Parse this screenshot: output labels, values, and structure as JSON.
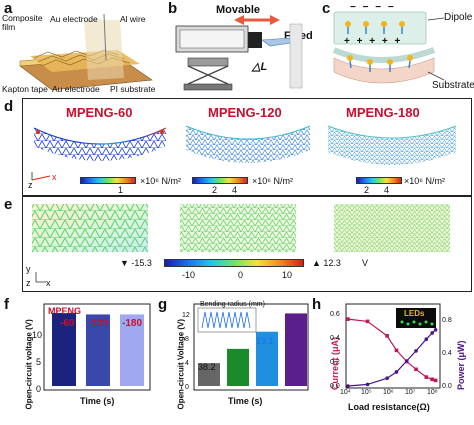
{
  "panels": {
    "a": {
      "label": "a",
      "texts": {
        "composite": "Composite\nfilm",
        "au_top": "Au electrode",
        "al": "Al wire",
        "kapton": "Kapton tape",
        "au_bottom": "Au electrode",
        "pi": "PI substrate"
      }
    },
    "b": {
      "label": "b",
      "movable": "Movable",
      "fixed": "Fixed",
      "delta": "△L"
    },
    "c": {
      "label": "c",
      "dipole": "Dipole",
      "substrate": "Substrate",
      "minus": "− − − −",
      "plus": "+ + + + +"
    },
    "d": {
      "label": "d",
      "titles": [
        "MPENG-60",
        "MPENG-120",
        "MPENG-180"
      ],
      "cbar1": {
        "ticks": [
          "1"
        ],
        "unit": "×10⁶ N/m²"
      },
      "cbar2": {
        "ticks": [
          "2",
          "4"
        ],
        "unit": "×10⁶ N/m²"
      },
      "cbar3": {
        "ticks": [
          "2",
          "4"
        ],
        "unit": "×10⁶ N/m²"
      },
      "axes": {
        "z": "z",
        "x": "x"
      }
    },
    "e": {
      "label": "e",
      "axes": {
        "y": "y",
        "z": "z",
        "x": "x"
      },
      "min_marker": "▼ -15.3",
      "max_marker": "▲ 12.3",
      "unit": "V",
      "ticks": [
        "-10",
        "0",
        "10"
      ]
    },
    "f": {
      "label": "f",
      "ylabel": "Open-circuit voltage (V)",
      "xlabel": "Time (s)",
      "title": "MPENG",
      "series_labels": [
        "-60",
        "-120",
        "-180"
      ],
      "yticks": [
        "0",
        "5",
        "10"
      ]
    },
    "g": {
      "label": "g",
      "ylabel": "Open-circuit Voltage (V)",
      "xlabel": "Time (s)",
      "inset_title": "Bending radius (mm)",
      "values": [
        "38.2",
        "25.5",
        "19.1",
        "12.7"
      ],
      "yticks": [
        "0",
        "2",
        "4",
        "6",
        "8",
        "10",
        "12",
        "14"
      ]
    },
    "h": {
      "label": "h",
      "ylabel_left": "Current (μA)",
      "ylabel_right": "Power (μW)",
      "xlabel": "Load resistance(Ω)",
      "leds": "LEDs",
      "yticks_left": [
        "0.0",
        "0.2",
        "0.4",
        "0.6"
      ],
      "yticks_right": [
        "0.0",
        "0.2",
        "0.4",
        "0.6",
        "0.8",
        "1.0"
      ],
      "xticks": [
        "10⁴",
        "10⁵",
        "10⁶",
        "10⁷",
        "10⁸"
      ]
    }
  },
  "chart_data": [
    {
      "type": "line",
      "panel": "h",
      "series": [
        {
          "axis": "left",
          "color": "#c2185b",
          "x": [
            10000,
            100000,
            1000000,
            3000000,
            10000000,
            30000000,
            100000000,
            200000000,
            300000000
          ],
          "values": [
            0.6,
            0.58,
            0.45,
            0.32,
            0.22,
            0.15,
            0.08,
            0.06,
            0.05
          ]
        },
        {
          "axis": "right",
          "color": "#4a148c",
          "x": [
            10000,
            100000,
            1000000,
            3000000,
            10000000,
            30000000,
            100000000,
            200000000,
            300000000
          ],
          "values": [
            0.0,
            0.02,
            0.1,
            0.18,
            0.32,
            0.45,
            0.6,
            0.68,
            0.72
          ]
        }
      ],
      "ylim_left": [
        0,
        0.7
      ],
      "ylim_right": [
        0,
        1.0
      ]
    },
    {
      "type": "bar",
      "panel": "g",
      "categories": [
        "38.2",
        "25.5",
        "19.1",
        "12.7"
      ],
      "values": [
        4.0,
        6.5,
        9.5,
        12.7
      ],
      "colors": [
        "#666666",
        "#1b8a2a",
        "#1f8fe0",
        "#5a1f8c"
      ],
      "ylim": [
        0,
        14
      ]
    },
    {
      "type": "bar",
      "panel": "f",
      "categories": [
        "-60",
        "-120",
        "-180"
      ],
      "values": [
        9.8,
        9.6,
        9.6
      ],
      "colors": [
        "#1a237e",
        "#3949ab",
        "#9fa8f0"
      ],
      "ylim": [
        0,
        11
      ]
    }
  ]
}
